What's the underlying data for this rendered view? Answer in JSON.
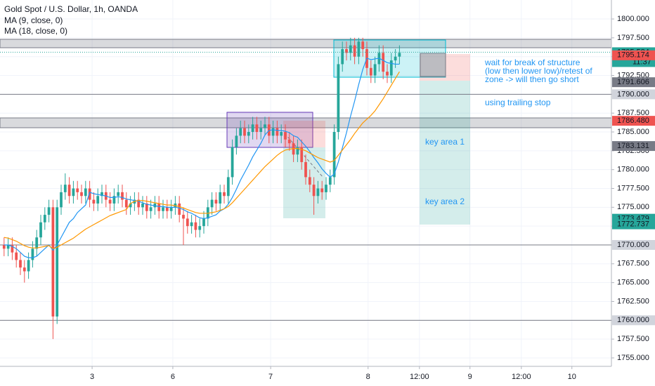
{
  "chart_data": {
    "type": "candlestick",
    "title": "Gold Spot / U.S. Dollar, 1h, OANDA",
    "x": [
      1,
      2,
      3,
      4,
      5,
      6,
      7,
      8,
      9,
      10,
      11,
      12,
      13,
      14,
      15,
      16,
      17,
      18,
      19,
      20,
      21,
      22,
      23,
      24,
      25,
      26,
      27,
      28,
      29,
      30,
      31,
      32,
      33,
      34,
      35,
      36,
      37,
      38,
      39,
      40,
      41,
      42,
      43,
      44,
      45,
      46,
      47,
      48,
      49,
      50,
      51,
      52,
      53,
      54,
      55,
      56,
      57,
      58,
      59,
      60,
      61,
      62,
      63,
      64,
      65,
      66,
      67,
      68,
      69,
      70,
      71,
      72,
      73,
      74,
      75,
      76,
      77,
      78,
      79,
      80,
      81,
      82,
      83,
      84,
      85,
      86,
      87,
      88,
      89,
      90,
      91,
      92,
      93,
      94,
      95,
      96,
      97,
      98
    ],
    "open": [
      1770,
      1769.5,
      1770,
      1769,
      1768,
      1767,
      1766.5,
      1768,
      1769.5,
      1771,
      1773,
      1774,
      1775,
      1760.5,
      1775,
      1777,
      1778,
      1776.5,
      1777.5,
      1777,
      1776.5,
      1777.5,
      1776,
      1775.5,
      1776.5,
      1777,
      1776,
      1775.5,
      1776.5,
      1777,
      1776,
      1775,
      1775.5,
      1776,
      1775,
      1775.5,
      1774.5,
      1775,
      1775.5,
      1774.5,
      1775,
      1774.5,
      1775,
      1775.5,
      1774,
      1773.5,
      1772.5,
      1773,
      1772,
      1772.5,
      1773.5,
      1775,
      1776,
      1775.5,
      1777,
      1776.5,
      1779,
      1783,
      1784.5,
      1785.5,
      1784.5,
      1785,
      1786,
      1785,
      1785.5,
      1786,
      1784.5,
      1785.5,
      1784.5,
      1785,
      1784,
      1783.5,
      1782,
      1783,
      1781,
      1779,
      1778,
      1776.5,
      1777.5,
      1777,
      1778,
      1779,
      1785,
      1794,
      1796,
      1795.5,
      1796.5,
      1795,
      1797,
      1796,
      1793.5,
      1792.5,
      1794,
      1795.5,
      1793,
      1792.5,
      1794.5,
      1795
    ],
    "high": [
      1771,
      1771,
      1771,
      1770,
      1769,
      1768,
      1769,
      1770.5,
      1772,
      1774,
      1775,
      1776,
      1776,
      1776,
      1778,
      1779.5,
      1779,
      1778.5,
      1778.5,
      1778,
      1778.5,
      1778.5,
      1777,
      1777.5,
      1778,
      1778,
      1777,
      1777.5,
      1778,
      1778,
      1777,
      1776.5,
      1777,
      1777,
      1776.5,
      1776.5,
      1776,
      1776.5,
      1776.5,
      1776,
      1776,
      1776,
      1776.5,
      1776.5,
      1775,
      1774.5,
      1774,
      1774,
      1773.5,
      1774.5,
      1776,
      1777,
      1777,
      1778,
      1778,
      1780,
      1784,
      1785.5,
      1786.5,
      1786.5,
      1786,
      1787,
      1787,
      1786.5,
      1787,
      1787,
      1786.5,
      1786.5,
      1786,
      1786,
      1785,
      1784.5,
      1784,
      1784,
      1782,
      1780,
      1779,
      1778.5,
      1778.5,
      1779,
      1780,
      1786,
      1795,
      1797,
      1797,
      1797.5,
      1797.5,
      1797.5,
      1797.5,
      1797,
      1794.5,
      1795,
      1796.5,
      1796.5,
      1794,
      1795.5,
      1796,
      1796.5
    ],
    "low": [
      1768.5,
      1768.5,
      1768,
      1767,
      1766,
      1765,
      1765.5,
      1767,
      1768.5,
      1770,
      1772,
      1773,
      1757.5,
      1759.5,
      1774,
      1776,
      1775.5,
      1775.5,
      1776,
      1775.5,
      1775.5,
      1775,
      1774.5,
      1774.5,
      1775.5,
      1775,
      1774.5,
      1774.5,
      1775.5,
      1775,
      1774,
      1774,
      1774.5,
      1774,
      1774,
      1773.5,
      1773.5,
      1774,
      1773.5,
      1773.5,
      1773.5,
      1773.5,
      1774,
      1773,
      1770,
      1771.5,
      1771.5,
      1771,
      1771,
      1771.5,
      1772.5,
      1774,
      1774.5,
      1774.5,
      1775.5,
      1775.5,
      1778,
      1782,
      1783.5,
      1783.5,
      1783.5,
      1784,
      1784,
      1784,
      1784.5,
      1783.5,
      1783.5,
      1783.5,
      1783.5,
      1783,
      1782.5,
      1781,
      1781,
      1780,
      1778,
      1777,
      1774,
      1775.5,
      1776,
      1776,
      1777,
      1778,
      1784,
      1793,
      1794.5,
      1794.5,
      1794,
      1794,
      1795,
      1792.5,
      1791.5,
      1791.5,
      1793,
      1792,
      1791.5,
      1791.5,
      1793.5,
      1794
    ],
    "close": [
      1769.5,
      1770,
      1769,
      1768,
      1767,
      1766.5,
      1768,
      1769.5,
      1771,
      1773,
      1774,
      1775,
      1760.5,
      1775,
      1777,
      1778,
      1776.5,
      1777.5,
      1777,
      1776.5,
      1777.5,
      1776,
      1775.5,
      1776.5,
      1777,
      1776,
      1775.5,
      1776.5,
      1777,
      1776,
      1775,
      1775.5,
      1776,
      1775,
      1775.5,
      1774.5,
      1775,
      1775.5,
      1774.5,
      1775,
      1774.5,
      1775,
      1775.5,
      1774,
      1773.5,
      1772.5,
      1773,
      1772,
      1772.5,
      1773.5,
      1775,
      1776,
      1775.5,
      1777,
      1776.5,
      1779,
      1783,
      1784.5,
      1785.5,
      1784.5,
      1785,
      1786,
      1785,
      1785.5,
      1786,
      1784.5,
      1785.5,
      1784.5,
      1785,
      1784,
      1783.5,
      1782,
      1783,
      1781,
      1779,
      1778,
      1776.5,
      1777.5,
      1777,
      1778,
      1779,
      1785,
      1794,
      1796,
      1795.5,
      1796.5,
      1795,
      1797,
      1796,
      1793.5,
      1792.5,
      1794,
      1795.5,
      1793,
      1792.5,
      1794.5,
      1795,
      1795.5
    ],
    "up_color": "#26a69a",
    "down_color": "#ef5350",
    "series": [
      {
        "name": "MA (9, close, 0)",
        "color": "#2196f3",
        "values": [
          1770,
          1770,
          1769.8,
          1769.5,
          1769,
          1768.5,
          1768.3,
          1768.3,
          1768.5,
          1769,
          1769.5,
          1770,
          1769.3,
          1770,
          1771,
          1772,
          1773,
          1773.5,
          1774.3,
          1774.8,
          1775.3,
          1777,
          1776.8,
          1776.7,
          1776.6,
          1776.5,
          1776.3,
          1776.3,
          1776.4,
          1776.3,
          1776.1,
          1776,
          1775.9,
          1775.8,
          1775.6,
          1775.4,
          1775.3,
          1775.2,
          1775.1,
          1775.1,
          1775,
          1775,
          1775,
          1774.9,
          1774.7,
          1774.4,
          1774.2,
          1773.9,
          1773.6,
          1773.5,
          1773.6,
          1773.8,
          1774,
          1774.5,
          1774.8,
          1775.4,
          1776.3,
          1777.4,
          1778.6,
          1779.6,
          1780.6,
          1781.7,
          1782.6,
          1783.5,
          1784.6,
          1785.2,
          1785.3,
          1785.2,
          1785.2,
          1785.1,
          1784.9,
          1784.5,
          1784.3,
          1783.7,
          1783.1,
          1782.4,
          1781.6,
          1780.9,
          1780.1,
          1779.5,
          1779,
          1779.4,
          1781,
          1782.9,
          1784.9,
          1787.1,
          1789.1,
          1791.3,
          1793.3,
          1794.8,
          1794.6,
          1794.7,
          1794.8,
          1794.5,
          1794.2,
          1794.1,
          1794,
          1794
        ]
      },
      {
        "name": "MA (18, close, 0)",
        "color": "#ff9800",
        "values": [
          1771,
          1770.9,
          1770.7,
          1770.5,
          1770.2,
          1769.9,
          1769.7,
          1769.6,
          1769.6,
          1769.7,
          1769.8,
          1769.9,
          1769.5,
          1769.7,
          1770,
          1770.3,
          1770.6,
          1770.9,
          1771.3,
          1771.7,
          1772.1,
          1772.4,
          1772.7,
          1773,
          1773.3,
          1773.6,
          1773.9,
          1774.1,
          1774.3,
          1774.5,
          1774.7,
          1775.5,
          1775.8,
          1775.9,
          1775.9,
          1775.8,
          1775.7,
          1775.6,
          1775.5,
          1775.4,
          1775.3,
          1775.3,
          1775.2,
          1775.1,
          1774.9,
          1774.7,
          1774.5,
          1774.3,
          1774.2,
          1774.2,
          1774.2,
          1774.3,
          1774.4,
          1774.6,
          1774.8,
          1775.1,
          1775.6,
          1776.2,
          1776.8,
          1777.4,
          1778,
          1778.6,
          1779.2,
          1779.8,
          1780.4,
          1780.9,
          1781.4,
          1781.9,
          1782.3,
          1782.6,
          1782.7,
          1782.8,
          1782.8,
          1782.7,
          1782.5,
          1782.2,
          1781.9,
          1781.6,
          1781.4,
          1781.2,
          1781,
          1781.2,
          1781.9,
          1782.6,
          1783.3,
          1784,
          1784.8,
          1785.5,
          1786.2,
          1786.7,
          1787.2,
          1787.8,
          1788.6,
          1789.4,
          1790.3,
          1791.2,
          1792.1,
          1793
        ]
      }
    ],
    "xlim": [
      0,
      150
    ],
    "xticks": [
      {
        "value": 22.6,
        "label": "3"
      },
      {
        "value": 42.4,
        "label": "6"
      },
      {
        "value": 66.4,
        "label": "7"
      },
      {
        "value": 90.3,
        "label": "8"
      },
      {
        "value": 102.9,
        "label": "12:00"
      },
      {
        "value": 115.3,
        "label": "9"
      },
      {
        "value": 127.9,
        "label": "12:00"
      },
      {
        "value": 140.3,
        "label": "10"
      }
    ],
    "ylim": [
      1753.88,
      1802.52
    ],
    "yticks": [
      {
        "value": 1755,
        "label": "1755.000"
      },
      {
        "value": 1757.5,
        "label": "1757.500"
      },
      {
        "value": 1760,
        "label": "1760.000"
      },
      {
        "value": 1762.5,
        "label": "1762.500"
      },
      {
        "value": 1765,
        "label": "1765.000"
      },
      {
        "value": 1767.5,
        "label": "1767.500"
      },
      {
        "value": 1770,
        "label": "1770.000"
      },
      {
        "value": 1772.5,
        "label": "1772.500"
      },
      {
        "value": 1775,
        "label": "1775.000"
      },
      {
        "value": 1777.5,
        "label": "1777.500"
      },
      {
        "value": 1780,
        "label": "1780.000"
      },
      {
        "value": 1782.5,
        "label": "1782.500"
      },
      {
        "value": 1785,
        "label": "1785.000"
      },
      {
        "value": 1787.5,
        "label": "1787.500"
      },
      {
        "value": 1790,
        "label": "1790.000"
      },
      {
        "value": 1792.5,
        "label": "1792.500"
      },
      {
        "value": 1795,
        "label": "1795.000"
      },
      {
        "value": 1797.5,
        "label": "1797.500"
      },
      {
        "value": 1800,
        "label": "1800.000"
      }
    ],
    "grid": true,
    "levels": [
      1790,
      1770,
      1760
    ],
    "price_tags": [
      {
        "value": 1795.584,
        "label": "1795.584",
        "color": "#26a69a",
        "text_color": "#ffffff"
      },
      {
        "value": 1795.174,
        "label": "1795.174",
        "color": "#ef5350",
        "text_color": "#ffffff"
      },
      {
        "value": 1791.606,
        "label": "1791.606",
        "color": "#787b86",
        "text_color": "#ffffff"
      },
      {
        "value": 1790,
        "label": "1790.000",
        "color": "#d1d4dc",
        "text_color": "#131722"
      },
      {
        "value": 1786.48,
        "label": "1786.480",
        "color": "#ef5350",
        "text_color": "#ffffff"
      },
      {
        "value": 1783.131,
        "label": "1783.131",
        "color": "#787b86",
        "text_color": "#ffffff"
      },
      {
        "value": 1773.479,
        "label": "1773.479",
        "color": "#26a69a",
        "text_color": "#ffffff"
      },
      {
        "value": 1772.737,
        "label": "1772.737",
        "color": "#26a69a",
        "text_color": "#ffffff"
      },
      {
        "value": 1770,
        "label": "1770.000",
        "color": "#d1d4dc",
        "text_color": "#131722"
      },
      {
        "value": 1760,
        "label": "1760.000",
        "color": "#d1d4dc",
        "text_color": "#131722"
      }
    ],
    "countdown": "11:37",
    "annotations": [
      "wait for break of structure",
      "(low then lower low)/retest of",
      "zone -> will then go short",
      "using trailing stop",
      "key area 1",
      "key area 2"
    ]
  }
}
